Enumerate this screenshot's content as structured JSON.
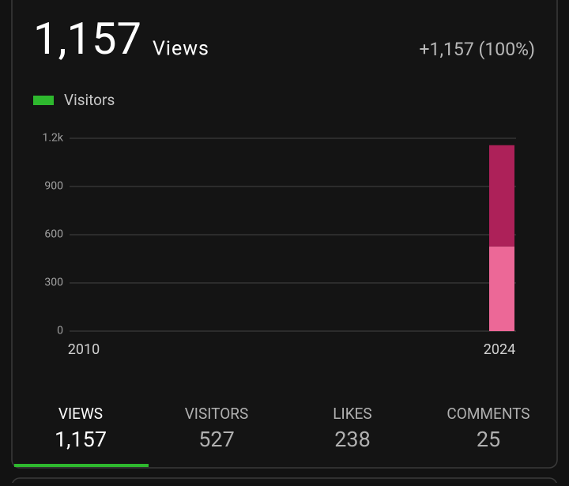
{
  "header": {
    "total": "1,157",
    "unit": "Views",
    "change": "+1,157 (100%)"
  },
  "chart_data": {
    "type": "stacked-bar",
    "x": [
      2024
    ],
    "series": [
      {
        "name": "Visitors",
        "color": "#ec6897",
        "values": [
          527
        ]
      },
      {
        "color": "#ad2159",
        "values": [
          630
        ]
      }
    ],
    "legend_color": "#2eb82e",
    "xlim": [
      2010,
      2024
    ],
    "xticks": [
      2010,
      2024
    ],
    "ylim": [
      0,
      1200
    ],
    "yticks": [
      0,
      300,
      600,
      900,
      {
        "value": 1200,
        "label": "1.2k"
      }
    ],
    "grid": true
  },
  "tabs": [
    {
      "label": "VIEWS",
      "value": "1,157"
    },
    {
      "label": "VISITORS",
      "value": "527"
    },
    {
      "label": "LIKES",
      "value": "238"
    },
    {
      "label": "COMMENTS",
      "value": "25"
    }
  ],
  "active_tab": 0
}
